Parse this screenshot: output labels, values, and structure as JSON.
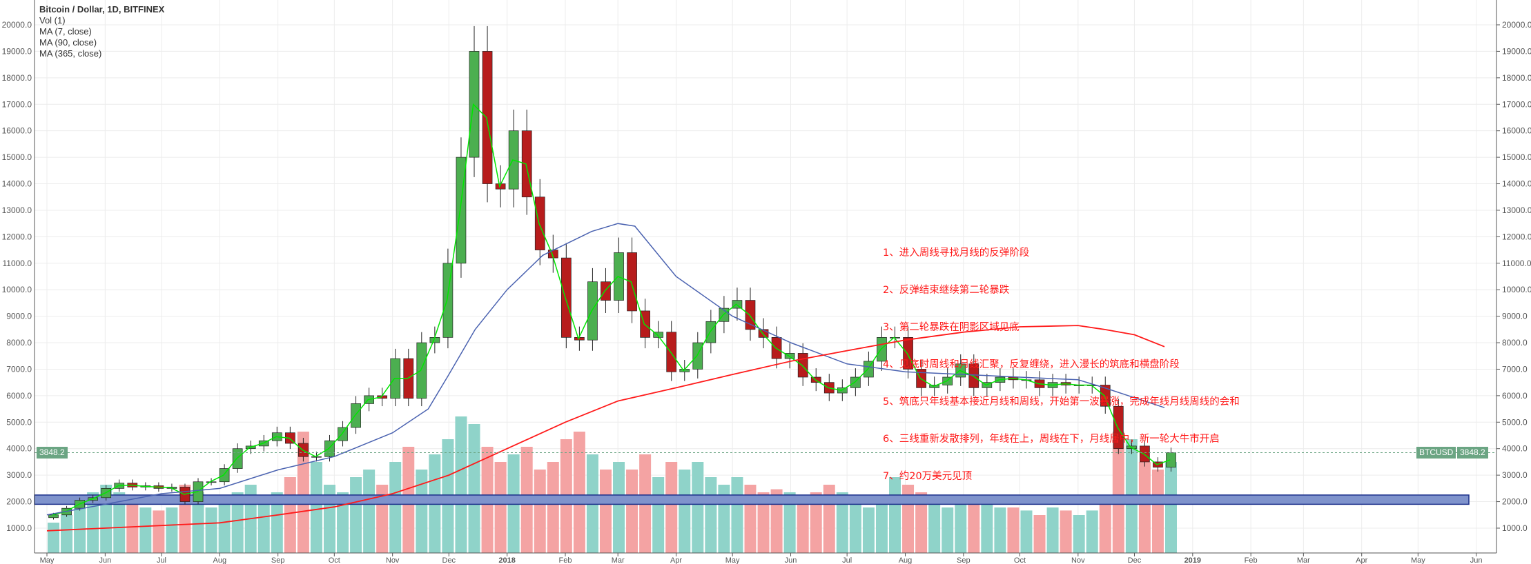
{
  "legend": {
    "title": "Bitcoin / Dollar, 1D, BITFINEX",
    "items": [
      "Vol (1)",
      "MA (7, close)",
      "MA (90, close)",
      "MA (365, close)"
    ]
  },
  "annotations": [
    "1、进入周线寻找月线的反弹阶段",
    "2、反弹结束继续第二轮暴跌",
    "3、第二轮暴跌在阴影区域见底",
    "4、见底时周线和月线汇聚，反复缠绕，进入漫长的筑底和横盘阶段",
    "5、筑底只年线基本接近月线和周线，开始第一波暴涨，完成年线月线周线的会和",
    "6、三线重新发散排列，年线在上，周线在下，月线居中，新一轮大牛市开启",
    "7、约20万美元见顶"
  ],
  "price_tag": {
    "symbol": "BTCUSD",
    "value": "3848.2",
    "left_value": "3848.2"
  },
  "colors": {
    "up": "#4caf50",
    "down": "#b71c1c",
    "ma7": "#00e600",
    "ma90": "#4a62b0",
    "ma365": "#ff1a1a",
    "vol_up": "#8fd3c9",
    "vol_down": "#f4a3a3",
    "zone": "#7f93cc",
    "tag": "#6ba583",
    "annotation": "#ff1a1a"
  },
  "chart_data": {
    "type": "candlestick",
    "title": "Bitcoin / Dollar, 1D, BITFINEX",
    "ylim": [
      0,
      20500
    ],
    "y_ticks": [
      "1000.0",
      "2000.0",
      "3000.0",
      "4000.0",
      "5000.0",
      "6000.0",
      "7000.0",
      "8000.0",
      "9000.0",
      "10000.0",
      "11000.0",
      "12000.0",
      "13000.0",
      "14000.0",
      "15000.0",
      "16000.0",
      "17000.0",
      "18000.0",
      "19000.0",
      "20000.0"
    ],
    "x_ticks": [
      [
        "2017-05-01",
        "May"
      ],
      [
        "2017-06-01",
        "Jun"
      ],
      [
        "2017-07-01",
        "Jul"
      ],
      [
        "2017-08-01",
        "Aug"
      ],
      [
        "2017-09-01",
        "Sep"
      ],
      [
        "2017-10-01",
        "Oct"
      ],
      [
        "2017-11-01",
        "Nov"
      ],
      [
        "2017-12-01",
        "Dec"
      ],
      [
        "2018-01-01",
        "2018"
      ],
      [
        "2018-02-01",
        "Feb"
      ],
      [
        "2018-03-01",
        "Mar"
      ],
      [
        "2018-04-01",
        "Apr"
      ],
      [
        "2018-05-01",
        "May"
      ],
      [
        "2018-06-01",
        "Jun"
      ],
      [
        "2018-07-01",
        "Jul"
      ],
      [
        "2018-08-01",
        "Aug"
      ],
      [
        "2018-09-01",
        "Sep"
      ],
      [
        "2018-10-01",
        "Oct"
      ],
      [
        "2018-11-01",
        "Nov"
      ],
      [
        "2018-12-01",
        "Dec"
      ],
      [
        "2019-01-01",
        "2019"
      ],
      [
        "2019-02-01",
        "Feb"
      ],
      [
        "2019-03-01",
        "Mar"
      ],
      [
        "2019-04-01",
        "Apr"
      ],
      [
        "2019-05-01",
        "May"
      ],
      [
        "2019-06-01",
        "Jun"
      ]
    ],
    "x_range": [
      "2017-04-25",
      "2019-06-12"
    ],
    "grid": true,
    "close": [
      [
        "2017-05-01",
        1500
      ],
      [
        "2017-05-08",
        1750
      ],
      [
        "2017-05-15",
        2050
      ],
      [
        "2017-05-22",
        2150
      ],
      [
        "2017-05-29",
        2500
      ],
      [
        "2017-06-05",
        2700
      ],
      [
        "2017-06-12",
        2550
      ],
      [
        "2017-06-19",
        2600
      ],
      [
        "2017-06-26",
        2500
      ],
      [
        "2017-07-03",
        2550
      ],
      [
        "2017-07-10",
        2000
      ],
      [
        "2017-07-17",
        2750
      ],
      [
        "2017-07-24",
        2750
      ],
      [
        "2017-07-31",
        3250
      ],
      [
        "2017-08-07",
        4000
      ],
      [
        "2017-08-14",
        4100
      ],
      [
        "2017-08-21",
        4300
      ],
      [
        "2017-08-28",
        4600
      ],
      [
        "2017-09-04",
        4200
      ],
      [
        "2017-09-11",
        3700
      ],
      [
        "2017-09-18",
        3700
      ],
      [
        "2017-09-25",
        4300
      ],
      [
        "2017-10-02",
        4800
      ],
      [
        "2017-10-09",
        5700
      ],
      [
        "2017-10-16",
        6000
      ],
      [
        "2017-10-23",
        5900
      ],
      [
        "2017-10-30",
        7400
      ],
      [
        "2017-11-06",
        5900
      ],
      [
        "2017-11-13",
        8000
      ],
      [
        "2017-11-20",
        8200
      ],
      [
        "2017-11-27",
        11000
      ],
      [
        "2017-12-04",
        15000
      ],
      [
        "2017-12-11",
        19000
      ],
      [
        "2017-12-18",
        14000
      ],
      [
        "2017-12-25",
        13800
      ],
      [
        "2018-01-01",
        16000
      ],
      [
        "2018-01-08",
        13500
      ],
      [
        "2018-01-15",
        11500
      ],
      [
        "2018-01-22",
        11200
      ],
      [
        "2018-01-29",
        8200
      ],
      [
        "2018-02-05",
        8100
      ],
      [
        "2018-02-12",
        10300
      ],
      [
        "2018-02-19",
        9600
      ],
      [
        "2018-02-26",
        11400
      ],
      [
        "2018-03-05",
        9200
      ],
      [
        "2018-03-12",
        8200
      ],
      [
        "2018-03-19",
        8400
      ],
      [
        "2018-03-26",
        6900
      ],
      [
        "2018-04-02",
        7000
      ],
      [
        "2018-04-09",
        8000
      ],
      [
        "2018-04-16",
        8800
      ],
      [
        "2018-04-23",
        9300
      ],
      [
        "2018-04-30",
        9600
      ],
      [
        "2018-05-07",
        8500
      ],
      [
        "2018-05-14",
        8200
      ],
      [
        "2018-05-21",
        7400
      ],
      [
        "2018-05-28",
        7600
      ],
      [
        "2018-06-04",
        6700
      ],
      [
        "2018-06-11",
        6500
      ],
      [
        "2018-06-18",
        6100
      ],
      [
        "2018-06-25",
        6300
      ],
      [
        "2018-07-02",
        6700
      ],
      [
        "2018-07-09",
        7300
      ],
      [
        "2018-07-16",
        8200
      ],
      [
        "2018-07-23",
        8200
      ],
      [
        "2018-07-30",
        7000
      ],
      [
        "2018-08-06",
        6300
      ],
      [
        "2018-08-13",
        6400
      ],
      [
        "2018-08-20",
        6700
      ],
      [
        "2018-08-27",
        7200
      ],
      [
        "2018-09-03",
        6300
      ],
      [
        "2018-09-10",
        6500
      ],
      [
        "2018-09-17",
        6700
      ],
      [
        "2018-09-24",
        6600
      ],
      [
        "2018-10-01",
        6600
      ],
      [
        "2018-10-08",
        6300
      ],
      [
        "2018-10-15",
        6500
      ],
      [
        "2018-10-22",
        6400
      ],
      [
        "2018-10-29",
        6400
      ],
      [
        "2018-11-05",
        6400
      ],
      [
        "2018-11-12",
        5600
      ],
      [
        "2018-11-19",
        4000
      ],
      [
        "2018-11-26",
        4100
      ],
      [
        "2018-12-03",
        3500
      ],
      [
        "2018-12-10",
        3300
      ],
      [
        "2018-12-17",
        3848.2
      ]
    ],
    "volume_relative": [
      20,
      25,
      35,
      40,
      45,
      40,
      35,
      30,
      28,
      30,
      45,
      40,
      30,
      35,
      40,
      45,
      35,
      40,
      50,
      80,
      60,
      45,
      40,
      50,
      55,
      45,
      60,
      70,
      55,
      65,
      75,
      90,
      85,
      70,
      60,
      65,
      70,
      55,
      60,
      75,
      80,
      65,
      55,
      60,
      55,
      65,
      50,
      60,
      55,
      60,
      50,
      45,
      50,
      45,
      40,
      42,
      40,
      38,
      40,
      45,
      40,
      35,
      30,
      35,
      50,
      45,
      40,
      35,
      30,
      35,
      38,
      35,
      30,
      30,
      28,
      25,
      30,
      28,
      25,
      28,
      35,
      80,
      75,
      60,
      55,
      60
    ],
    "series": [
      {
        "name": "MA (90, close)",
        "points": [
          [
            "2017-05-01",
            1500
          ],
          [
            "2017-06-01",
            1900
          ],
          [
            "2017-07-01",
            2300
          ],
          [
            "2017-08-01",
            2500
          ],
          [
            "2017-09-01",
            3200
          ],
          [
            "2017-10-01",
            3700
          ],
          [
            "2017-11-01",
            4600
          ],
          [
            "2017-11-20",
            5500
          ],
          [
            "2017-12-01",
            6800
          ],
          [
            "2017-12-15",
            8500
          ],
          [
            "2018-01-01",
            10000
          ],
          [
            "2018-01-20",
            11300
          ],
          [
            "2018-02-15",
            12200
          ],
          [
            "2018-03-01",
            12500
          ],
          [
            "2018-03-10",
            12400
          ],
          [
            "2018-04-01",
            10500
          ],
          [
            "2018-05-01",
            9000
          ],
          [
            "2018-06-01",
            8000
          ],
          [
            "2018-07-01",
            7200
          ],
          [
            "2018-08-01",
            6900
          ],
          [
            "2018-09-01",
            6800
          ],
          [
            "2018-10-01",
            6700
          ],
          [
            "2018-11-01",
            6600
          ],
          [
            "2018-11-15",
            6300
          ],
          [
            "2018-12-17",
            5550
          ]
        ]
      },
      {
        "name": "MA (365, close)",
        "points": [
          [
            "2017-05-01",
            900
          ],
          [
            "2017-08-01",
            1200
          ],
          [
            "2017-09-01",
            1500
          ],
          [
            "2017-10-01",
            1800
          ],
          [
            "2017-11-01",
            2300
          ],
          [
            "2017-12-01",
            3000
          ],
          [
            "2018-01-01",
            4000
          ],
          [
            "2018-02-01",
            5000
          ],
          [
            "2018-03-01",
            5800
          ],
          [
            "2018-04-01",
            6300
          ],
          [
            "2018-05-01",
            6800
          ],
          [
            "2018-06-01",
            7300
          ],
          [
            "2018-07-01",
            7700
          ],
          [
            "2018-08-01",
            8100
          ],
          [
            "2018-09-01",
            8400
          ],
          [
            "2018-10-01",
            8600
          ],
          [
            "2018-11-01",
            8650
          ],
          [
            "2018-11-15",
            8500
          ],
          [
            "2018-12-01",
            8300
          ],
          [
            "2018-12-17",
            7850
          ]
        ]
      }
    ],
    "zone": {
      "from": 1900,
      "to": 2250
    },
    "last_price": 3848.2
  }
}
